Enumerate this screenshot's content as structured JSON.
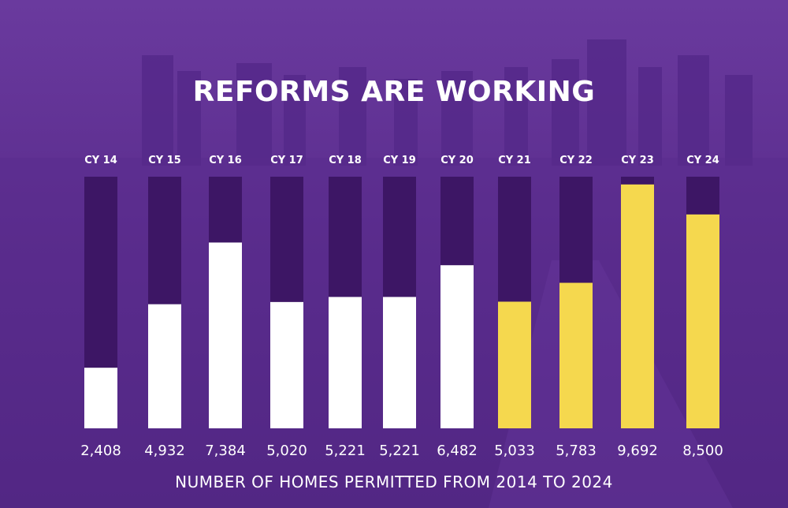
{
  "title": "REFORMS ARE WORKING",
  "subtitle": "NUMBER OF HOMES PERMITTED FROM 2014 TO 2024",
  "colors": {
    "track": "#3d1665",
    "white_bar": "#ffffff",
    "yellow_bar": "#f5d84e",
    "text": "#ffffff"
  },
  "chart_data": {
    "type": "bar",
    "categories": [
      "CY 14",
      "CY 15",
      "CY 16",
      "CY 17",
      "CY 18",
      "CY 19",
      "CY 20",
      "CY 21",
      "CY 22",
      "CY 23",
      "CY 24"
    ],
    "values": [
      2408,
      4932,
      7384,
      5020,
      5221,
      5221,
      6482,
      5033,
      5783,
      9692,
      8500
    ],
    "value_labels": [
      "2,408",
      "4,932",
      "7,384",
      "5,020",
      "5,221",
      "5,221",
      "6,482",
      "5,033",
      "5,783",
      "9,692",
      "8,500"
    ],
    "bar_colors": [
      "white",
      "white",
      "white",
      "white",
      "white",
      "white",
      "white",
      "yellow",
      "yellow",
      "yellow",
      "yellow"
    ],
    "title": "REFORMS ARE WORKING",
    "xlabel": "NUMBER OF HOMES PERMITTED FROM 2014 TO 2024",
    "ylabel": "",
    "ylim": [
      0,
      10000
    ],
    "grid": false
  }
}
